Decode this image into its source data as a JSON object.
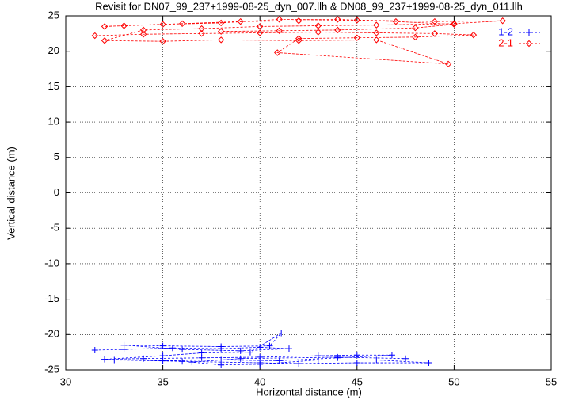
{
  "chart_data": {
    "type": "line",
    "title": "Revisit for DN07_99_237+1999-08-25_dyn_007.llh & DN08_99_237+1999-08-25_dyn_011.llh",
    "x_label": "Horizontal distance (m)",
    "y_label": "Vertical distance (m)",
    "xlim": [
      30,
      55
    ],
    "xticks": [
      30,
      35,
      40,
      45,
      50,
      55
    ],
    "ylim": [
      -25,
      25
    ],
    "yticks": [
      -25,
      -20,
      -15,
      -10,
      -5,
      0,
      5,
      10,
      15,
      20,
      25
    ],
    "grid": true,
    "legend": "top-right",
    "series": [
      {
        "name": "1-2",
        "color": "#0000ff",
        "marker": "plus",
        "x": [
          31.5,
          33,
          35.5,
          38,
          40,
          41.5,
          39,
          36,
          33,
          35,
          38,
          40.5,
          41.1,
          39.5,
          37,
          35,
          32,
          34,
          37,
          40,
          43,
          45,
          46.8,
          44,
          41,
          38,
          35,
          32.5,
          36,
          40,
          42,
          45,
          48.7,
          46,
          43,
          40,
          38,
          36.5,
          39,
          44,
          47.5
        ],
        "values": [
          -22.2,
          -22.1,
          -21.9,
          -22.0,
          -21.8,
          -22.0,
          -22.3,
          -22.1,
          -21.5,
          -21.6,
          -21.7,
          -21.6,
          -19.8,
          -22.5,
          -22.6,
          -23.0,
          -23.5,
          -23.4,
          -23.3,
          -23.2,
          -23.0,
          -22.9,
          -22.9,
          -23.3,
          -23.7,
          -23.6,
          -23.7,
          -23.6,
          -23.8,
          -24.0,
          -24.1,
          -24.0,
          -24.0,
          -23.6,
          -23.6,
          -24.2,
          -24.3,
          -23.9,
          -23.4,
          -23.2,
          -23.4
        ]
      },
      {
        "name": "2-1",
        "color": "#ff0000",
        "marker": "diamond",
        "x": [
          31.5,
          34,
          37,
          40,
          43,
          46,
          49,
          51,
          48,
          45,
          42,
          40.9,
          49.7,
          46,
          42,
          38,
          35,
          32,
          34,
          37,
          40,
          43,
          46,
          50,
          52.5,
          49,
          45,
          42,
          39,
          36,
          33,
          32,
          35,
          38,
          41,
          44,
          47,
          50,
          48,
          44,
          41,
          38
        ],
        "values": [
          22.2,
          22.4,
          22.5,
          22.6,
          22.7,
          22.6,
          22.5,
          22.3,
          22.0,
          21.9,
          21.8,
          19.8,
          18.2,
          21.6,
          21.5,
          21.6,
          21.4,
          21.5,
          23.0,
          23.2,
          23.5,
          23.6,
          23.7,
          23.9,
          24.3,
          24.2,
          24.4,
          24.3,
          24.2,
          23.9,
          23.6,
          23.5,
          23.8,
          24.0,
          24.5,
          24.5,
          24.2,
          23.8,
          23.3,
          23.0,
          22.9,
          22.8
        ]
      }
    ]
  }
}
